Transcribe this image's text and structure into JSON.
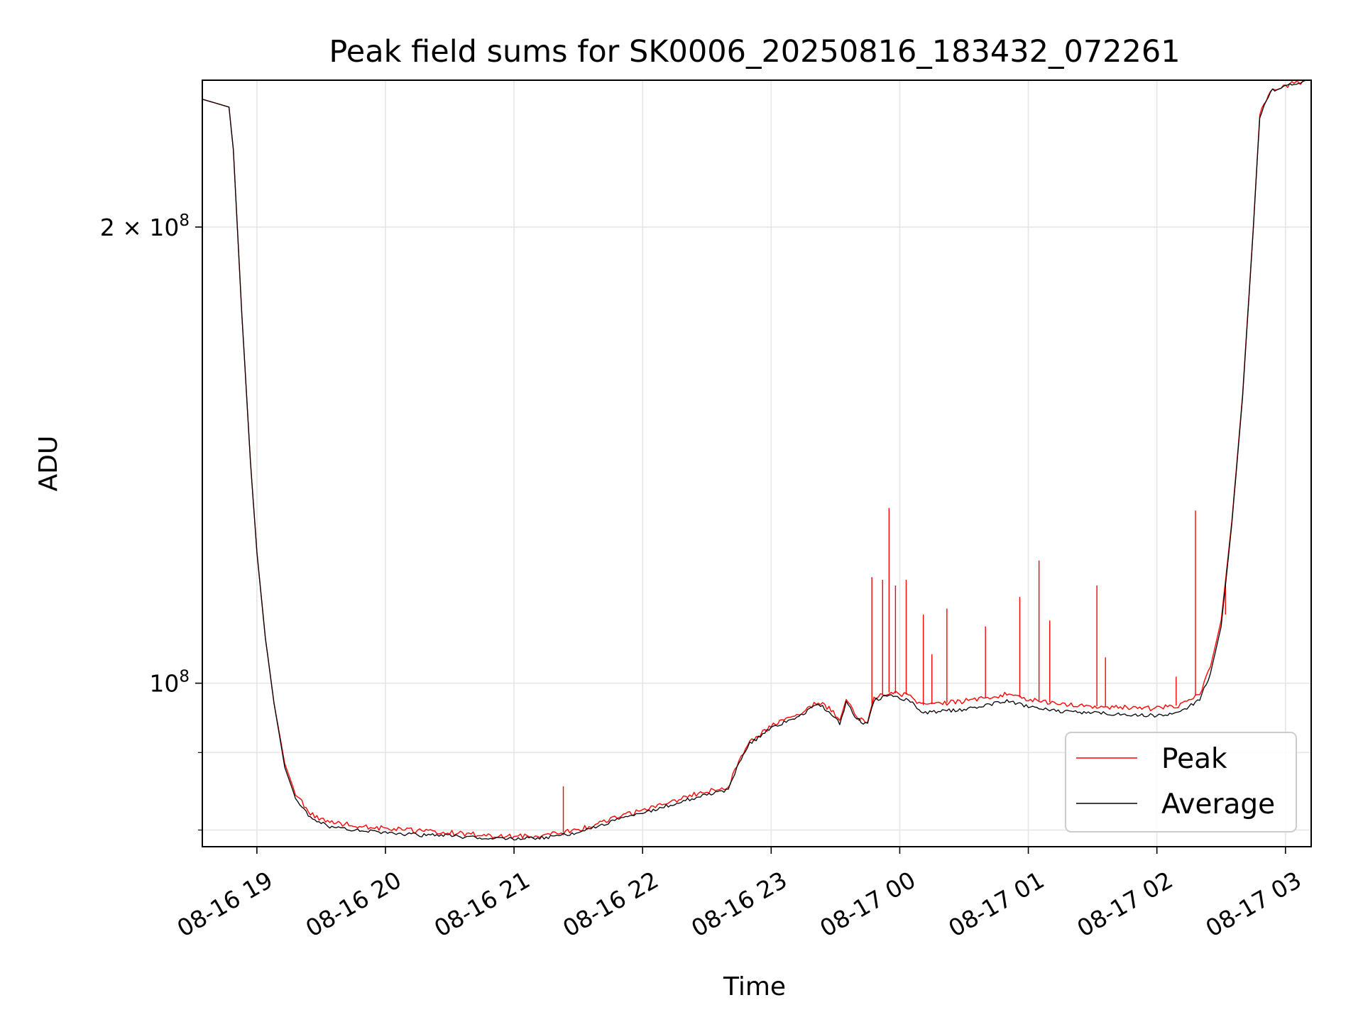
{
  "chart_data": {
    "type": "line",
    "title": "Peak field sums for SK0006_20250816_183432_072261",
    "xlabel": "Time",
    "ylabel": "ADU",
    "x_axis": {
      "type": "time",
      "range": [
        "2025-08-16 18:34:32",
        "2025-08-17 03:12:00"
      ],
      "ticks": [
        {
          "value": "2025-08-16 19:00",
          "label": "08-16 19"
        },
        {
          "value": "2025-08-16 20:00",
          "label": "08-16 20"
        },
        {
          "value": "2025-08-16 21:00",
          "label": "08-16 21"
        },
        {
          "value": "2025-08-16 22:00",
          "label": "08-16 22"
        },
        {
          "value": "2025-08-16 23:00",
          "label": "08-16 23"
        },
        {
          "value": "2025-08-17 00:00",
          "label": "08-17 00"
        },
        {
          "value": "2025-08-17 01:00",
          "label": "08-17 01"
        },
        {
          "value": "2025-08-17 02:00",
          "label": "08-17 02"
        },
        {
          "value": "2025-08-17 03:00",
          "label": "08-17 03"
        }
      ]
    },
    "y_axis": {
      "scale": "log",
      "range": [
        78000000,
        250000000
      ],
      "major_ticks": [
        {
          "value": 100000000,
          "base": "10",
          "exp": "8",
          "mult": ""
        },
        {
          "value": 200000000,
          "base": "10",
          "exp": "8",
          "mult": "2 × "
        }
      ],
      "minor_ticks": [
        80000000,
        90000000
      ]
    },
    "grid": true,
    "legend": {
      "position": "lower-right",
      "entries": [
        "Peak",
        "Average"
      ]
    },
    "series": [
      {
        "name": "Peak",
        "color": "#ff0000",
        "points": [
          [
            "2025-08-16 18:34",
            243000000
          ],
          [
            "2025-08-16 18:47",
            240000000
          ],
          [
            "2025-08-16 18:49",
            225000000
          ],
          [
            "2025-08-16 18:53",
            175000000
          ],
          [
            "2025-08-16 18:57",
            140000000
          ],
          [
            "2025-08-16 19:00",
            122000000
          ],
          [
            "2025-08-16 19:04",
            107000000
          ],
          [
            "2025-08-16 19:08",
            97000000
          ],
          [
            "2025-08-16 19:13",
            88500000
          ],
          [
            "2025-08-16 19:18",
            84500000
          ],
          [
            "2025-08-16 19:25",
            82000000
          ],
          [
            "2025-08-16 19:33",
            81000000
          ],
          [
            "2025-08-16 19:45",
            80600000
          ],
          [
            "2025-08-16 20:00",
            80200000
          ],
          [
            "2025-08-16 20:15",
            79900000
          ],
          [
            "2025-08-16 20:30",
            79700000
          ],
          [
            "2025-08-16 20:45",
            79400000
          ],
          [
            "2025-08-16 21:00",
            79200000
          ],
          [
            "2025-08-16 21:15",
            79400000
          ],
          [
            "2025-08-16 21:30",
            80000000
          ],
          [
            "2025-08-16 21:45",
            81300000
          ],
          [
            "2025-08-16 22:00",
            82500000
          ],
          [
            "2025-08-16 22:15",
            83700000
          ],
          [
            "2025-08-16 22:30",
            84900000
          ],
          [
            "2025-08-16 22:40",
            85400000
          ],
          [
            "2025-08-16 22:45",
            89000000
          ],
          [
            "2025-08-16 22:50",
            91500000
          ],
          [
            "2025-08-16 23:00",
            93700000
          ],
          [
            "2025-08-16 23:15",
            95700000
          ],
          [
            "2025-08-16 23:22",
            97200000
          ],
          [
            "2025-08-16 23:28",
            96000000
          ],
          [
            "2025-08-16 23:32",
            94500000
          ],
          [
            "2025-08-16 23:35",
            97500000
          ],
          [
            "2025-08-16 23:40",
            95000000
          ],
          [
            "2025-08-16 23:45",
            94200000
          ],
          [
            "2025-08-16 23:48",
            97800000
          ],
          [
            "2025-08-16 23:55",
            98600000
          ],
          [
            "2025-08-17 00:05",
            98200000
          ],
          [
            "2025-08-17 00:10",
            96700000
          ],
          [
            "2025-08-17 00:30",
            97300000
          ],
          [
            "2025-08-17 00:50",
            98300000
          ],
          [
            "2025-08-17 01:00",
            97600000
          ],
          [
            "2025-08-17 01:15",
            96900000
          ],
          [
            "2025-08-17 01:30",
            96600000
          ],
          [
            "2025-08-17 01:45",
            96400000
          ],
          [
            "2025-08-17 02:00",
            96200000
          ],
          [
            "2025-08-17 02:10",
            96700000
          ],
          [
            "2025-08-17 02:20",
            98500000
          ],
          [
            "2025-08-17 02:25",
            102500000
          ],
          [
            "2025-08-17 02:30",
            110000000
          ],
          [
            "2025-08-17 02:35",
            128000000
          ],
          [
            "2025-08-17 02:40",
            155000000
          ],
          [
            "2025-08-17 02:45",
            200000000
          ],
          [
            "2025-08-17 02:48",
            237000000
          ],
          [
            "2025-08-17 02:53",
            246500000
          ],
          [
            "2025-08-17 03:05",
            249000000
          ],
          [
            "2025-08-17 03:12",
            250000000
          ]
        ],
        "spikes": [
          [
            "2025-08-16 21:23",
            85500000
          ],
          [
            "2025-08-16 23:47",
            117500000
          ],
          [
            "2025-08-16 23:52",
            117000000
          ],
          [
            "2025-08-16 23:55",
            130500000
          ],
          [
            "2025-08-16 23:58",
            116000000
          ],
          [
            "2025-08-17 00:03",
            117000000
          ],
          [
            "2025-08-17 00:11",
            111000000
          ],
          [
            "2025-08-17 00:15",
            104500000
          ],
          [
            "2025-08-17 00:22",
            112000000
          ],
          [
            "2025-08-17 00:40",
            109000000
          ],
          [
            "2025-08-17 00:56",
            114000000
          ],
          [
            "2025-08-17 01:05",
            120500000
          ],
          [
            "2025-08-17 01:10",
            110000000
          ],
          [
            "2025-08-17 01:32",
            116000000
          ],
          [
            "2025-08-17 01:36",
            104000000
          ],
          [
            "2025-08-17 02:09",
            101000000
          ],
          [
            "2025-08-17 02:18",
            130000000
          ],
          [
            "2025-08-17 02:32",
            111000000
          ]
        ]
      },
      {
        "name": "Average",
        "color": "#000000",
        "points": [
          [
            "2025-08-16 18:34",
            243000000
          ],
          [
            "2025-08-16 18:47",
            240000000
          ],
          [
            "2025-08-16 18:49",
            225000000
          ],
          [
            "2025-08-16 18:53",
            175000000
          ],
          [
            "2025-08-16 18:57",
            140000000
          ],
          [
            "2025-08-16 19:00",
            122000000
          ],
          [
            "2025-08-16 19:04",
            107000000
          ],
          [
            "2025-08-16 19:08",
            97000000
          ],
          [
            "2025-08-16 19:13",
            88000000
          ],
          [
            "2025-08-16 19:18",
            84000000
          ],
          [
            "2025-08-16 19:25",
            81500000
          ],
          [
            "2025-08-16 19:33",
            80500000
          ],
          [
            "2025-08-16 19:45",
            80000000
          ],
          [
            "2025-08-16 20:00",
            79700000
          ],
          [
            "2025-08-16 20:15",
            79400000
          ],
          [
            "2025-08-16 20:30",
            79300000
          ],
          [
            "2025-08-16 20:45",
            79000000
          ],
          [
            "2025-08-16 21:00",
            78900000
          ],
          [
            "2025-08-16 21:15",
            79100000
          ],
          [
            "2025-08-16 21:30",
            79700000
          ],
          [
            "2025-08-16 21:45",
            81000000
          ],
          [
            "2025-08-16 22:00",
            82100000
          ],
          [
            "2025-08-16 22:15",
            83300000
          ],
          [
            "2025-08-16 22:30",
            84500000
          ],
          [
            "2025-08-16 22:40",
            85000000
          ],
          [
            "2025-08-16 22:45",
            88600000
          ],
          [
            "2025-08-16 22:50",
            91200000
          ],
          [
            "2025-08-16 23:00",
            93400000
          ],
          [
            "2025-08-16 23:15",
            95400000
          ],
          [
            "2025-08-16 23:22",
            96900000
          ],
          [
            "2025-08-16 23:28",
            95600000
          ],
          [
            "2025-08-16 23:32",
            94100000
          ],
          [
            "2025-08-16 23:35",
            97100000
          ],
          [
            "2025-08-16 23:40",
            94700000
          ],
          [
            "2025-08-16 23:45",
            93900000
          ],
          [
            "2025-08-16 23:48",
            97400000
          ],
          [
            "2025-08-16 23:55",
            98200000
          ],
          [
            "2025-08-17 00:05",
            97400000
          ],
          [
            "2025-08-17 00:10",
            95600000
          ],
          [
            "2025-08-17 00:30",
            96100000
          ],
          [
            "2025-08-17 00:50",
            97300000
          ],
          [
            "2025-08-17 01:00",
            96500000
          ],
          [
            "2025-08-17 01:15",
            95800000
          ],
          [
            "2025-08-17 01:30",
            95600000
          ],
          [
            "2025-08-17 01:45",
            95400000
          ],
          [
            "2025-08-17 02:00",
            95200000
          ],
          [
            "2025-08-17 02:10",
            95600000
          ],
          [
            "2025-08-17 02:20",
            97500000
          ],
          [
            "2025-08-17 02:25",
            101500000
          ],
          [
            "2025-08-17 02:30",
            109000000
          ],
          [
            "2025-08-17 02:35",
            127500000
          ],
          [
            "2025-08-17 02:40",
            154500000
          ],
          [
            "2025-08-17 02:45",
            199500000
          ],
          [
            "2025-08-17 02:48",
            236500000
          ],
          [
            "2025-08-17 02:53",
            246000000
          ],
          [
            "2025-08-17 03:05",
            248800000
          ],
          [
            "2025-08-17 03:12",
            249800000
          ]
        ]
      }
    ]
  }
}
